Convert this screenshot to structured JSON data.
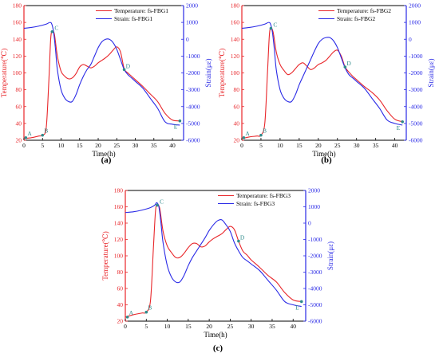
{
  "chart_data": [
    {
      "type": "line",
      "panel_label": "(a)",
      "xlabel": "Time(h)",
      "ylabel_left": "Temperature(℃)",
      "ylabel_right": "Strain(με)",
      "xlim": [
        0,
        43
      ],
      "ylim_left": [
        20,
        180
      ],
      "ylim_right": [
        -6000,
        2000
      ],
      "x_ticks": [
        "0",
        "5",
        "10",
        "15",
        "20",
        "25",
        "30",
        "35",
        "40"
      ],
      "y_ticks_left": [
        "20",
        "40",
        "60",
        "80",
        "100",
        "120",
        "140",
        "160",
        "180"
      ],
      "y_ticks_right": [
        "-6000",
        "-5000",
        "-4000",
        "-3000",
        "-2000",
        "-1000",
        "0",
        "1000",
        "2000"
      ],
      "legend_position": "top-right",
      "series": [
        {
          "name": "Temperature: fs-FBG1",
          "axis": "left",
          "color": "#e8262a",
          "x": [
            0,
            2,
            4,
            5,
            6,
            6.7,
            7.2,
            7.6,
            8.2,
            9,
            10,
            11,
            12,
            13,
            14,
            15,
            16,
            17,
            18,
            19,
            20,
            21,
            22,
            23,
            24,
            25,
            26,
            27,
            28,
            29,
            30,
            32,
            34,
            36,
            38,
            40,
            42
          ],
          "y": [
            22,
            23,
            25,
            26,
            35,
            90,
            140,
            149,
            146,
            120,
            102,
            96,
            93,
            94,
            99,
            107,
            110,
            108,
            106,
            108,
            112,
            115,
            118,
            122,
            127,
            131,
            125,
            105,
            100,
            96,
            92,
            84,
            75,
            66,
            52,
            44,
            43
          ]
        },
        {
          "name": "Strain: fs-FBG1",
          "axis": "right",
          "color": "#2a2ae6",
          "x": [
            0,
            2,
            4,
            6,
            7,
            7.5,
            8,
            8.5,
            9,
            10,
            11,
            12,
            13,
            14,
            15,
            16,
            17,
            18,
            19,
            20,
            21,
            22,
            23,
            24,
            25,
            26,
            27,
            28,
            29,
            30,
            32,
            34,
            36,
            38,
            40,
            42
          ],
          "y": [
            650,
            700,
            780,
            900,
            1000,
            900,
            400,
            -600,
            -1800,
            -3000,
            -3500,
            -3700,
            -3700,
            -3300,
            -2700,
            -2200,
            -1800,
            -1500,
            -1000,
            -500,
            -150,
            0,
            0,
            -200,
            -600,
            -1200,
            -1800,
            -2100,
            -2300,
            -2500,
            -2900,
            -3500,
            -4100,
            -4900,
            -5050,
            -5100
          ]
        }
      ],
      "points": [
        {
          "label": "A",
          "x": 0.5,
          "y": 23
        },
        {
          "label": "B",
          "x": 5,
          "y": 26
        },
        {
          "label": "C",
          "x": 7.6,
          "y": 149
        },
        {
          "label": "D",
          "x": 27,
          "y": 104
        },
        {
          "label": "E",
          "x": 42,
          "y": 43
        }
      ]
    },
    {
      "type": "line",
      "panel_label": "(b)",
      "xlabel": "Time(h)",
      "ylabel_left": "Temperature(℃)",
      "ylabel_right": "Strain(με)",
      "xlim": [
        0,
        43
      ],
      "ylim_left": [
        20,
        180
      ],
      "ylim_right": [
        -6000,
        2000
      ],
      "x_ticks": [
        "0",
        "5",
        "10",
        "15",
        "20",
        "25",
        "30",
        "35",
        "40"
      ],
      "y_ticks_left": [
        "20",
        "40",
        "60",
        "80",
        "100",
        "120",
        "140",
        "160",
        "180"
      ],
      "y_ticks_right": [
        "-6000",
        "-5000",
        "-4000",
        "-3000",
        "-2000",
        "-1000",
        "0",
        "1000",
        "2000"
      ],
      "legend_position": "top-right",
      "series": [
        {
          "name": "Temperature: fs-FBG2",
          "axis": "left",
          "color": "#e8262a",
          "x": [
            0,
            2,
            4,
            5,
            6,
            6.7,
            7.2,
            7.6,
            8.2,
            9,
            10,
            11,
            12,
            13,
            14,
            15,
            16,
            17,
            18,
            19,
            20,
            21,
            22,
            23,
            24,
            25,
            26,
            27,
            28,
            29,
            30,
            32,
            34,
            36,
            38,
            40,
            42
          ],
          "y": [
            22,
            24,
            25,
            26,
            40,
            100,
            145,
            153,
            148,
            125,
            110,
            103,
            98,
            100,
            105,
            110,
            112,
            108,
            104,
            106,
            110,
            112,
            115,
            120,
            125,
            127,
            120,
            107,
            101,
            96,
            92,
            84,
            77,
            68,
            55,
            45,
            42
          ]
        },
        {
          "name": "Strain: fs-FBG2",
          "axis": "right",
          "color": "#2a2ae6",
          "x": [
            0,
            2,
            4,
            6,
            7,
            7.5,
            8,
            8.5,
            9,
            10,
            11,
            12,
            13,
            14,
            15,
            16,
            17,
            18,
            19,
            20,
            21,
            22,
            23,
            24,
            25,
            26,
            27,
            28,
            29,
            30,
            32,
            34,
            36,
            38,
            40,
            42
          ],
          "y": [
            650,
            700,
            780,
            900,
            1000,
            900,
            400,
            -600,
            -1800,
            -3000,
            -3500,
            -3700,
            -3700,
            -3300,
            -2700,
            -2200,
            -1700,
            -1200,
            -700,
            -250,
            0,
            100,
            100,
            -100,
            -500,
            -1100,
            -1700,
            -2100,
            -2300,
            -2500,
            -2900,
            -3500,
            -4100,
            -4800,
            -5000,
            -5100
          ]
        }
      ],
      "points": [
        {
          "label": "A",
          "x": 0.5,
          "y": 23
        },
        {
          "label": "B",
          "x": 5,
          "y": 26
        },
        {
          "label": "C",
          "x": 7.6,
          "y": 153
        },
        {
          "label": "D",
          "x": 27,
          "y": 107
        },
        {
          "label": "E",
          "x": 42,
          "y": 42
        }
      ]
    },
    {
      "type": "line",
      "panel_label": "(c)",
      "xlabel": "Time(h)",
      "ylabel_left": "Temperature(℃)",
      "ylabel_right": "Strain(με)",
      "xlim": [
        0,
        43
      ],
      "ylim_left": [
        20,
        180
      ],
      "ylim_right": [
        -6000,
        2000
      ],
      "x_ticks": [
        "0",
        "5",
        "10",
        "15",
        "20",
        "25",
        "30",
        "35",
        "40"
      ],
      "y_ticks_left": [
        "20",
        "40",
        "60",
        "80",
        "100",
        "120",
        "140",
        "160",
        "180"
      ],
      "y_ticks_right": [
        "-6000",
        "-5000",
        "-4000",
        "-3000",
        "-2000",
        "-1000",
        "0",
        "1000",
        "2000"
      ],
      "legend_position": "top-right",
      "series": [
        {
          "name": "Temperature: fs-FBG3",
          "axis": "left",
          "color": "#e8262a",
          "x": [
            0,
            2,
            4,
            5,
            6,
            6.7,
            7.2,
            7.6,
            8.2,
            9,
            10,
            11,
            12,
            13,
            14,
            15,
            16,
            17,
            18,
            19,
            20,
            21,
            22,
            23,
            24,
            25,
            26,
            27,
            28,
            29,
            30,
            32,
            34,
            36,
            38,
            40,
            42
          ],
          "y": [
            25,
            28,
            30,
            31,
            45,
            110,
            155,
            162,
            158,
            130,
            112,
            104,
            98,
            98,
            103,
            110,
            115,
            115,
            111,
            112,
            117,
            121,
            124,
            127,
            132,
            136,
            132,
            118,
            106,
            101,
            95,
            86,
            76,
            68,
            55,
            46,
            44
          ]
        },
        {
          "name": "Strain: fs-FBG3",
          "axis": "right",
          "color": "#2a2ae6",
          "x": [
            0,
            2,
            4,
            6,
            7,
            7.5,
            8,
            8.5,
            9,
            10,
            11,
            12,
            13,
            14,
            15,
            16,
            17,
            18,
            19,
            20,
            21,
            22,
            23,
            24,
            25,
            26,
            27,
            28,
            29,
            30,
            32,
            34,
            36,
            38,
            40,
            42
          ],
          "y": [
            650,
            700,
            800,
            950,
            1100,
            1250,
            1000,
            0,
            -1200,
            -2600,
            -3300,
            -3600,
            -3600,
            -3200,
            -2600,
            -2100,
            -1700,
            -1300,
            -900,
            -450,
            -100,
            150,
            200,
            -100,
            -500,
            -1200,
            -1700,
            -2100,
            -2300,
            -2500,
            -2900,
            -3500,
            -4100,
            -4800,
            -5000,
            -5100
          ]
        }
      ],
      "points": [
        {
          "label": "A",
          "x": 0.5,
          "y": 25
        },
        {
          "label": "B",
          "x": 5,
          "y": 31
        },
        {
          "label": "C",
          "x": 7.6,
          "y": 162
        },
        {
          "label": "D",
          "x": 27,
          "y": 118
        },
        {
          "label": "E",
          "x": 42,
          "y": 44
        }
      ]
    }
  ]
}
